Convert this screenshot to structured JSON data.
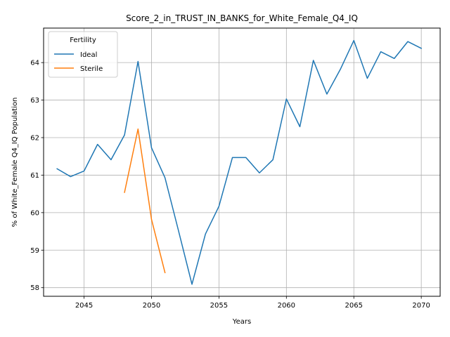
{
  "chart_data": {
    "type": "line",
    "title": "Score_2_in_TRUST_IN_BANKS_for_White_Female_Q4_IQ",
    "xlabel": "Years",
    "ylabel": "% of White_Female Q4_IQ Population",
    "xlim": [
      2042.0,
      2071.4
    ],
    "ylim": [
      57.77,
      64.92
    ],
    "x_ticks": [
      2045,
      2050,
      2055,
      2060,
      2065,
      2070
    ],
    "y_ticks": [
      58,
      59,
      60,
      61,
      62,
      63,
      64
    ],
    "grid": true,
    "legend": {
      "title": "Fertility",
      "placement": "top-left"
    },
    "series": [
      {
        "name": "Ideal",
        "color": "#1f77b4",
        "x": [
          2043,
          2044,
          2045,
          2046,
          2047,
          2048,
          2049,
          2050,
          2051,
          2052,
          2053,
          2054,
          2055,
          2056,
          2057,
          2058,
          2059,
          2060,
          2061,
          2062,
          2063,
          2064,
          2065,
          2066,
          2067,
          2068,
          2069,
          2070
        ],
        "y": [
          61.17,
          60.96,
          61.11,
          61.82,
          61.41,
          62.07,
          64.03,
          61.73,
          60.93,
          59.52,
          58.09,
          59.43,
          60.17,
          61.47,
          61.47,
          61.06,
          61.41,
          63.03,
          62.29,
          64.06,
          63.16,
          63.82,
          64.59,
          63.58,
          64.29,
          64.11,
          64.56,
          64.38
        ]
      },
      {
        "name": "Sterile",
        "color": "#ff7f0e",
        "x": [
          2048,
          2049,
          2050,
          2051
        ],
        "y": [
          60.54,
          62.23,
          59.82,
          58.4
        ]
      }
    ]
  }
}
